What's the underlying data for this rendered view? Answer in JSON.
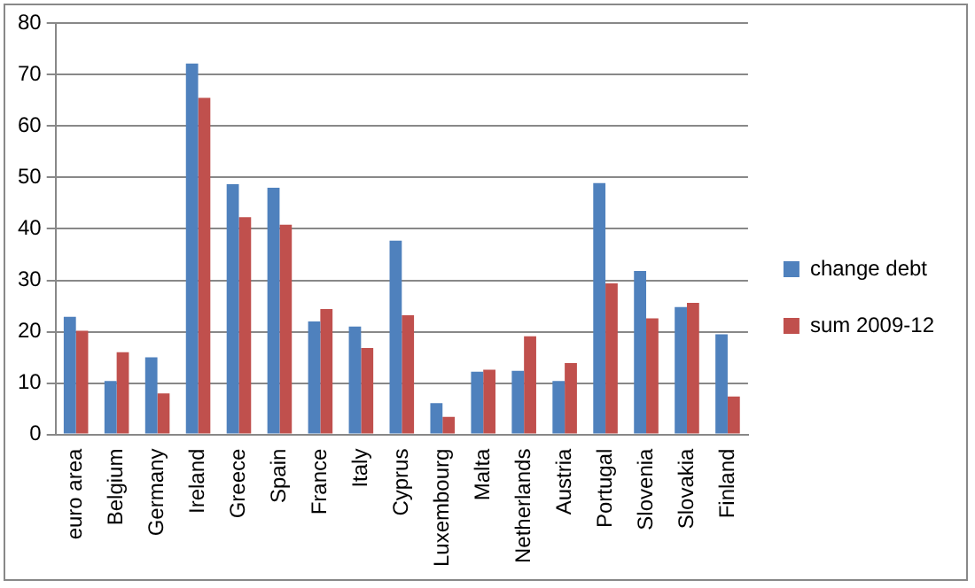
{
  "chart_data": {
    "type": "bar",
    "categories": [
      "euro area",
      "Belgium",
      "Germany",
      "Ireland",
      "Greece",
      "Spain",
      "France",
      "Italy",
      "Cyprus",
      "Luxembourg",
      "Malta",
      "Netherlands",
      "Austria",
      "Portugal",
      "Slovenia",
      "Slovakia",
      "Finland"
    ],
    "series": [
      {
        "name": "change debt",
        "color": "#4f81bd",
        "values": [
          22.9,
          10.4,
          15,
          72.2,
          48.7,
          48,
          22,
          21,
          37.7,
          6.1,
          12.2,
          12.4,
          10.4,
          48.9,
          31.8,
          24.8,
          19.5
        ]
      },
      {
        "name": "sum 2009-12",
        "color": "#c0504d",
        "values": [
          20.2,
          16,
          8,
          65.5,
          42.3,
          40.8,
          24.4,
          16.8,
          23.2,
          3.4,
          12.6,
          19.1,
          13.9,
          29.4,
          22.6,
          25.6,
          7.4
        ]
      }
    ],
    "ylim": [
      0,
      80
    ],
    "yticks": [
      0,
      10,
      20,
      30,
      40,
      50,
      60,
      70,
      80
    ],
    "grid": "y",
    "legend": "right"
  }
}
